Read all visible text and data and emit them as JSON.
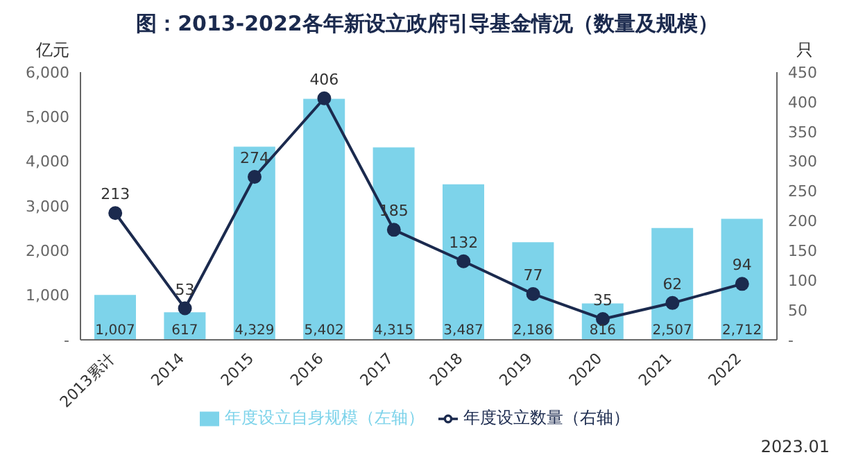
{
  "chart_data": {
    "type": "bar",
    "title": "图：2013-2022各年新设立政府引导基金情况（数量及规模）",
    "ylabel": "亿元",
    "y2label": "只",
    "categories": [
      "2013累计",
      "2014",
      "2015",
      "2016",
      "2017",
      "2018",
      "2019",
      "2020",
      "2021",
      "2022"
    ],
    "series": [
      {
        "name": "年度设立自身规模（左轴）",
        "color": "#7dd3ea",
        "values": [
          1007,
          617,
          4329,
          5402,
          4315,
          3487,
          2186,
          816,
          2507,
          2712
        ],
        "value_labels": [
          "1,007",
          "617",
          "4,329",
          "5,402",
          "4,315",
          "3,487",
          "2,186",
          "816",
          "2,507",
          "2,712"
        ]
      },
      {
        "name": "年度设立数量（右轴）",
        "type": "line",
        "axis": "y2",
        "color": "#1b2a4e",
        "marker": "circle",
        "values": [
          213,
          53,
          274,
          406,
          185,
          132,
          77,
          35,
          62,
          94
        ]
      }
    ],
    "ylim": [
      0,
      6000
    ],
    "yticks": [
      {
        "value": 0,
        "label": "-"
      },
      {
        "value": 1000,
        "label": "1,000"
      },
      {
        "value": 2000,
        "label": "2,000"
      },
      {
        "value": 3000,
        "label": "3,000"
      },
      {
        "value": 4000,
        "label": "4,000"
      },
      {
        "value": 5000,
        "label": "5,000"
      },
      {
        "value": 6000,
        "label": "6,000"
      }
    ],
    "y2lim": [
      0,
      450
    ],
    "y2ticks": [
      {
        "value": 0,
        "label": "-"
      },
      50,
      100,
      150,
      200,
      250,
      300,
      350,
      400,
      450
    ],
    "data_labels": true,
    "legend": "bottom",
    "grid": false,
    "annotations": [
      "2023.01"
    ]
  }
}
